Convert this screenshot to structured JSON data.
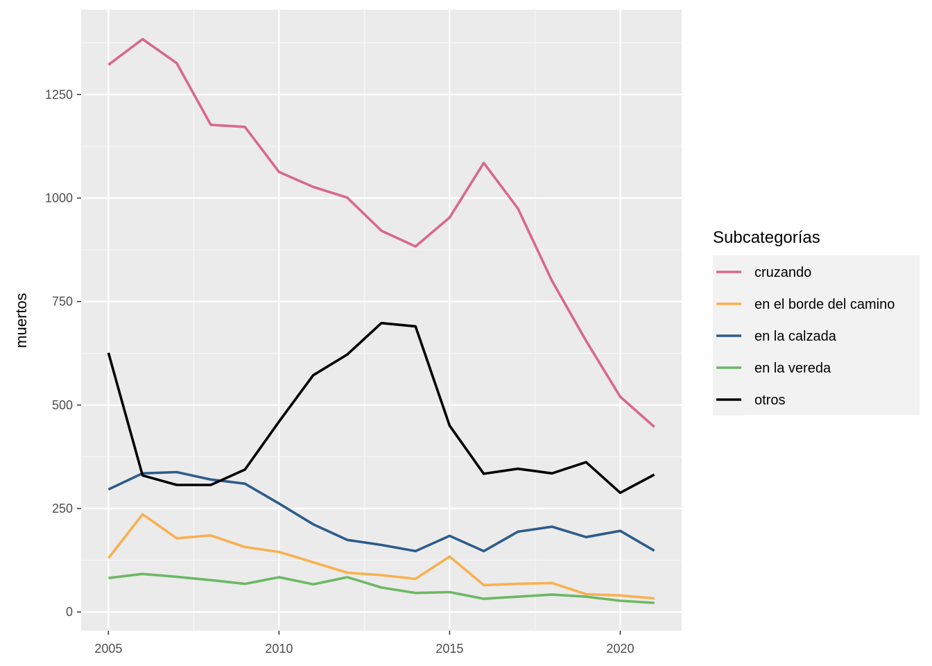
{
  "chart_data": {
    "type": "line",
    "title": "",
    "xlabel": "",
    "ylabel": "muertos",
    "x": [
      2005,
      2006,
      2007,
      2008,
      2009,
      2010,
      2011,
      2012,
      2013,
      2014,
      2015,
      2016,
      2017,
      2018,
      2019,
      2020,
      2021
    ],
    "xlim": [
      2004.2,
      2021.8
    ],
    "ylim": [
      -45,
      1455
    ],
    "x_ticks": [
      2005,
      2010,
      2015,
      2020
    ],
    "y_ticks": [
      0,
      250,
      500,
      750,
      1000,
      1250
    ],
    "grid": true,
    "legend_title": "Subcategorías",
    "legend_position": "right",
    "series": [
      {
        "name": "cruzando",
        "color": "#D8698C",
        "values": [
          1322,
          1384,
          1326,
          1177,
          1172,
          1063,
          1027,
          1001,
          921,
          883,
          953,
          1085,
          975,
          800,
          655,
          520,
          447
        ]
      },
      {
        "name": "en el borde del camino",
        "color": "#F9B050",
        "values": [
          130,
          236,
          178,
          185,
          157,
          145,
          120,
          95,
          89,
          80,
          134,
          65,
          68,
          70,
          43,
          40,
          33
        ]
      },
      {
        "name": "en la calzada",
        "color": "#2D5C8A",
        "values": [
          296,
          335,
          338,
          320,
          310,
          262,
          212,
          174,
          162,
          147,
          184,
          147,
          194,
          206,
          181,
          196,
          148
        ]
      },
      {
        "name": "en la vereda",
        "color": "#6DB865",
        "values": [
          82,
          92,
          85,
          77,
          68,
          84,
          67,
          84,
          59,
          46,
          48,
          32,
          37,
          42,
          37,
          27,
          22
        ]
      },
      {
        "name": "otros",
        "color": "#000000",
        "values": [
          626,
          330,
          307,
          307,
          344,
          460,
          572,
          622,
          698,
          690,
          450,
          334,
          346,
          335,
          362,
          288,
          332
        ]
      }
    ]
  }
}
